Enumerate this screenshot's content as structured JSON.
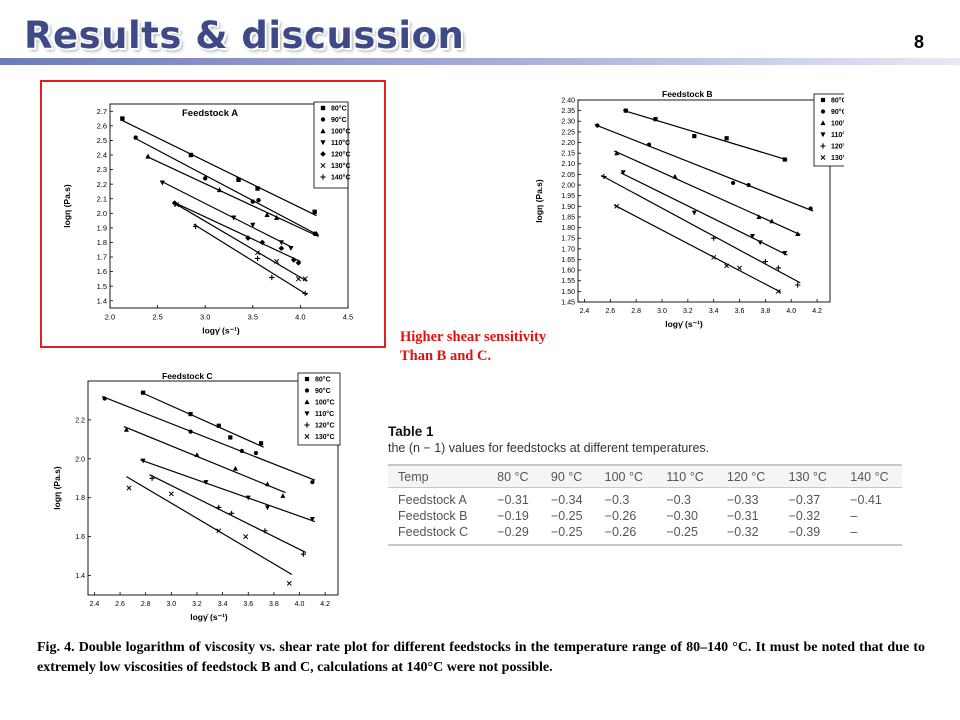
{
  "slide": {
    "title": "Results & discussion",
    "page_number": "8",
    "note": "Higher shear sensitivity\nThan B and C.",
    "figure_caption": "Fig. 4. Double logarithm of viscosity vs. shear rate plot for different feedstocks in the temperature range of 80–140 °C. It must be noted that due to extremely low viscosities of feedstock B and C, calculations at 140°C were not possible."
  },
  "colors": {
    "title": "#3e4a88",
    "highlight_border": "#e02020",
    "note_text": "#e01010"
  },
  "table": {
    "label": "Table 1",
    "caption": "the (n − 1) values for feedstocks at different temperatures.",
    "headers": [
      "Temp",
      "80 °C",
      "90 °C",
      "100 °C",
      "110 °C",
      "120 °C",
      "130 °C",
      "140 °C"
    ],
    "rows": [
      {
        "label": "Feedstock A",
        "values": [
          "−0.31",
          "−0.34",
          "−0.3",
          "−0.3",
          "−0.33",
          "−0.37",
          "−0.41"
        ]
      },
      {
        "label": "Feedstock B",
        "values": [
          "−0.19",
          "−0.25",
          "−0.26",
          "−0.30",
          "−0.31",
          "−0.32",
          "–"
        ]
      },
      {
        "label": "Feedstock C",
        "values": [
          "−0.29",
          "−0.25",
          "−0.26",
          "−0.25",
          "−0.32",
          "−0.39",
          "–"
        ]
      }
    ]
  },
  "chart_data": [
    {
      "type": "scatter",
      "title": "Feedstock A",
      "xlabel": "logγ̇ (s⁻¹)",
      "ylabel": "logη (Pa.s)",
      "xlim": [
        2.0,
        4.5
      ],
      "ylim": [
        1.35,
        2.75
      ],
      "xticks": [
        "2.0",
        "2.5",
        "3.0",
        "3.5",
        "4.0",
        "4.5"
      ],
      "yticks": [
        "1.4",
        "1.5",
        "1.6",
        "1.7",
        "1.8",
        "1.9",
        "2.0",
        "2.1",
        "2.2",
        "2.3",
        "2.4",
        "2.5",
        "2.6",
        "2.7"
      ],
      "grid": false,
      "legend_position": "top-right",
      "series": [
        {
          "name": "80°C",
          "marker": "square",
          "x": [
            2.13,
            2.85,
            3.35,
            3.55,
            4.15
          ],
          "y": [
            2.65,
            2.4,
            2.23,
            2.17,
            2.01
          ]
        },
        {
          "name": "90°C",
          "marker": "circle",
          "x": [
            2.27,
            3.0,
            3.5,
            3.56,
            4.15
          ],
          "y": [
            2.52,
            2.24,
            2.08,
            2.09,
            1.86
          ]
        },
        {
          "name": "100°C",
          "marker": "triangle-up",
          "x": [
            2.4,
            3.15,
            3.65,
            3.75,
            4.17
          ],
          "y": [
            2.39,
            2.16,
            1.99,
            1.97,
            1.86
          ]
        },
        {
          "name": "110°C",
          "marker": "triangle-down",
          "x": [
            2.55,
            3.3,
            3.5,
            3.8,
            3.9
          ],
          "y": [
            2.21,
            1.97,
            1.92,
            1.8,
            1.76
          ]
        },
        {
          "name": "120°C",
          "marker": "diamond",
          "x": [
            2.68,
            3.45,
            3.6,
            3.8,
            3.93,
            3.98
          ],
          "y": [
            2.07,
            1.83,
            1.8,
            1.76,
            1.68,
            1.66
          ]
        },
        {
          "name": "130°C",
          "marker": "x",
          "x": [
            2.7,
            3.55,
            3.75,
            3.98,
            4.05
          ],
          "y": [
            2.06,
            1.73,
            1.67,
            1.55,
            1.55
          ]
        },
        {
          "name": "140°C",
          "marker": "plus",
          "x": [
            2.9,
            3.55,
            3.7,
            4.05
          ],
          "y": [
            1.91,
            1.69,
            1.56,
            1.45
          ]
        }
      ]
    },
    {
      "type": "scatter",
      "title": "Feedstock B",
      "xlabel": "logγ̇ (s⁻¹)",
      "ylabel": "logη (Pa.s)",
      "xlim": [
        2.35,
        4.3
      ],
      "ylim": [
        1.45,
        2.4
      ],
      "xticks": [
        "2.4",
        "2.6",
        "2.8",
        "3.0",
        "3.2",
        "3.4",
        "3.6",
        "3.8",
        "4.0",
        "4.2"
      ],
      "yticks": [
        "1.45",
        "1.50",
        "1.55",
        "1.60",
        "1.65",
        "1.70",
        "1.75",
        "1.80",
        "1.85",
        "1.90",
        "1.95",
        "2.00",
        "2.05",
        "2.10",
        "2.15",
        "2.20",
        "2.25",
        "2.30",
        "2.35",
        "2.40"
      ],
      "grid": false,
      "legend_position": "top-right",
      "series": [
        {
          "name": "80°C",
          "marker": "square",
          "x": [
            2.72,
            2.95,
            3.25,
            3.5,
            3.95
          ],
          "y": [
            2.35,
            2.31,
            2.23,
            2.22,
            2.12
          ]
        },
        {
          "name": "90°C",
          "marker": "circle",
          "x": [
            2.5,
            2.9,
            3.55,
            3.67,
            4.15
          ],
          "y": [
            2.28,
            2.19,
            2.01,
            2.0,
            1.89
          ]
        },
        {
          "name": "100°C",
          "marker": "triangle-up",
          "x": [
            2.65,
            3.1,
            3.75,
            3.85,
            4.05
          ],
          "y": [
            2.15,
            2.04,
            1.85,
            1.83,
            1.77
          ]
        },
        {
          "name": "110°C",
          "marker": "triangle-down",
          "x": [
            2.7,
            3.25,
            3.7,
            3.76,
            3.95
          ],
          "y": [
            2.06,
            1.87,
            1.76,
            1.73,
            1.68
          ]
        },
        {
          "name": "120°C",
          "marker": "plus",
          "x": [
            2.55,
            3.4,
            3.8,
            3.9,
            4.05
          ],
          "y": [
            2.04,
            1.75,
            1.64,
            1.61,
            1.53
          ]
        },
        {
          "name": "130°C",
          "marker": "x",
          "x": [
            2.65,
            3.4,
            3.5,
            3.6,
            3.9
          ],
          "y": [
            1.9,
            1.66,
            1.62,
            1.61,
            1.5
          ]
        }
      ]
    },
    {
      "type": "scatter",
      "title": "Feedstock C",
      "xlabel": "logγ̇ (s⁻¹)",
      "ylabel": "logη (Pa.s)",
      "xlim": [
        2.35,
        4.3
      ],
      "ylim": [
        1.3,
        2.4
      ],
      "xticks": [
        "2.4",
        "2.6",
        "2.8",
        "3.0",
        "3.2",
        "3.4",
        "3.6",
        "3.8",
        "4.0",
        "4.2"
      ],
      "yticks": [
        "1.4",
        "1.6",
        "1.8",
        "2.0",
        "2.2"
      ],
      "grid": false,
      "legend_position": "top-right",
      "series": [
        {
          "name": "80°C",
          "marker": "square",
          "x": [
            2.78,
            3.15,
            3.37,
            3.46,
            3.7
          ],
          "y": [
            2.34,
            2.23,
            2.17,
            2.11,
            2.08
          ]
        },
        {
          "name": "90°C",
          "marker": "circle",
          "x": [
            2.48,
            3.15,
            3.55,
            3.66,
            4.1
          ],
          "y": [
            2.31,
            2.14,
            2.04,
            2.03,
            1.88
          ]
        },
        {
          "name": "100°C",
          "marker": "triangle-up",
          "x": [
            2.65,
            3.2,
            3.5,
            3.75,
            3.87
          ],
          "y": [
            2.15,
            2.02,
            1.95,
            1.87,
            1.81
          ]
        },
        {
          "name": "110°C",
          "marker": "triangle-down",
          "x": [
            2.78,
            3.27,
            3.6,
            3.75,
            4.1
          ],
          "y": [
            1.99,
            1.88,
            1.8,
            1.75,
            1.69
          ]
        },
        {
          "name": "120°C",
          "marker": "plus",
          "x": [
            2.85,
            3.37,
            3.47,
            3.73,
            4.03
          ],
          "y": [
            1.9,
            1.75,
            1.72,
            1.63,
            1.51
          ]
        },
        {
          "name": "130°C",
          "marker": "x",
          "x": [
            2.67,
            3.0,
            3.37,
            3.58,
            3.92
          ],
          "y": [
            1.85,
            1.82,
            1.63,
            1.6,
            1.36
          ]
        }
      ]
    }
  ]
}
